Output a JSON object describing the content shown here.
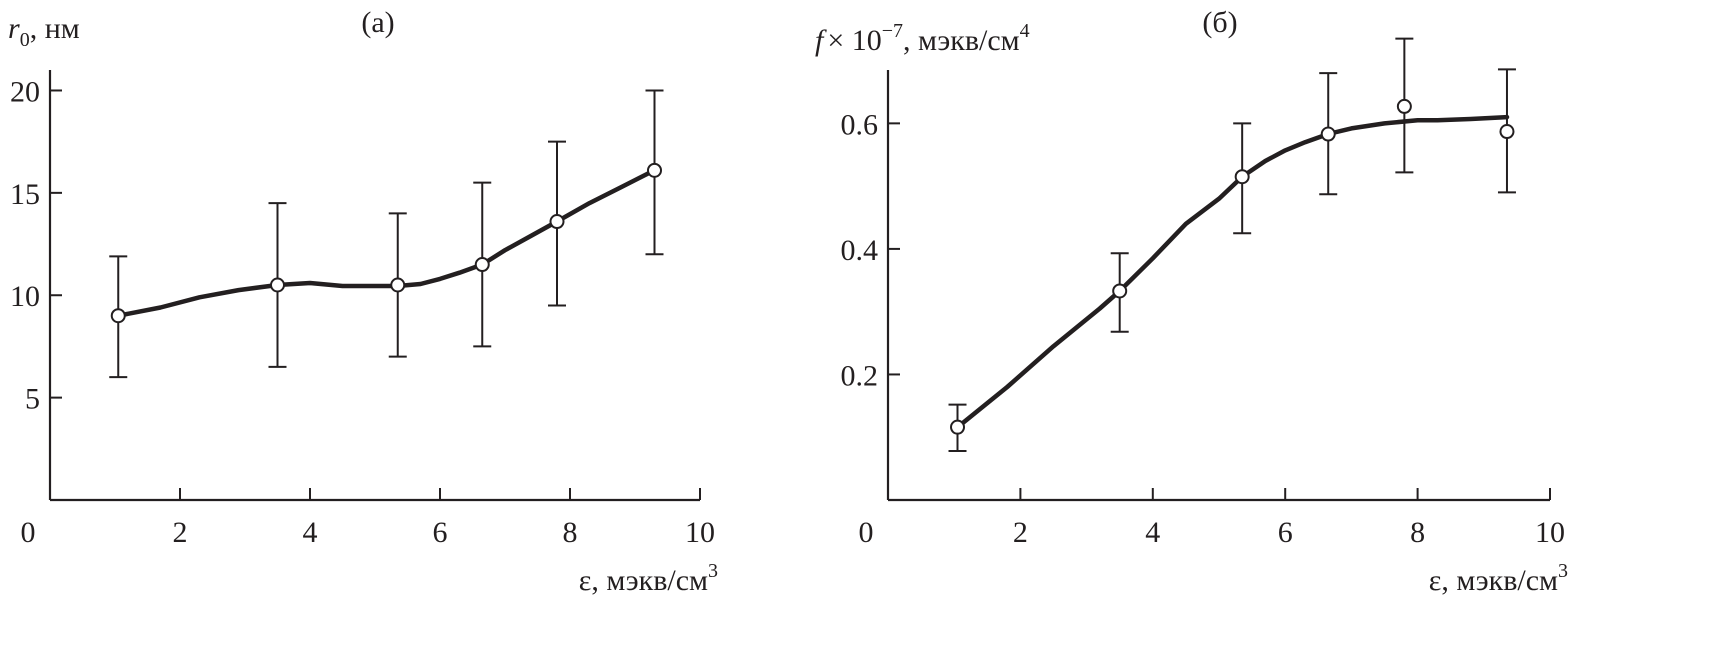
{
  "chart_data": [
    {
      "type": "line",
      "panel_label": "(а)",
      "ylabel_var": "r",
      "ylabel_sub": "0",
      "ylabel_rest": ", нм",
      "xlabel": "ε, мэкв/см",
      "xlabel_sup": "3",
      "xlim": [
        0,
        10
      ],
      "ylim": [
        0,
        21
      ],
      "xticks": [
        2,
        4,
        6,
        8,
        10
      ],
      "yticks": [
        5,
        10,
        15,
        20
      ],
      "origin_label": "0",
      "points": {
        "x": [
          1.05,
          3.5,
          5.35,
          6.65,
          7.8,
          9.3
        ],
        "y": [
          9.0,
          10.5,
          10.5,
          11.5,
          13.6,
          16.1
        ],
        "err_low": [
          6.0,
          6.5,
          7.0,
          7.5,
          9.5,
          12.0
        ],
        "err_high": [
          11.9,
          14.5,
          14.0,
          15.5,
          17.5,
          20.0
        ]
      },
      "curve": {
        "x": [
          1.05,
          1.7,
          2.3,
          2.9,
          3.5,
          4.0,
          4.5,
          5.0,
          5.35,
          5.7,
          6.0,
          6.3,
          6.65,
          7.0,
          7.4,
          7.8,
          8.3,
          8.8,
          9.3
        ],
        "y": [
          9.0,
          9.4,
          9.9,
          10.25,
          10.5,
          10.6,
          10.45,
          10.45,
          10.45,
          10.55,
          10.8,
          11.1,
          11.5,
          12.2,
          12.9,
          13.6,
          14.5,
          15.3,
          16.1
        ]
      }
    },
    {
      "type": "line",
      "panel_label": "(б)",
      "ylabel_var": "f",
      "ylabel_times": "× 10",
      "ylabel_exp": "−7",
      "ylabel_rest": ", мэкв/см",
      "ylabel_sup": "4",
      "xlabel": "ε, мэкв/см",
      "xlabel_sup": "3",
      "xlim": [
        0,
        10
      ],
      "ylim": [
        0,
        0.685
      ],
      "xticks": [
        2,
        4,
        6,
        8,
        10
      ],
      "yticks": [
        "0.2",
        "0.4",
        "0.6"
      ],
      "origin_label": "0",
      "points": {
        "x": [
          1.05,
          3.5,
          5.35,
          6.65,
          7.8,
          9.35
        ],
        "y": [
          0.116,
          0.333,
          0.515,
          0.583,
          0.627,
          0.587
        ],
        "err_low": [
          0.078,
          0.268,
          0.425,
          0.487,
          0.522,
          0.49
        ],
        "err_high": [
          0.152,
          0.393,
          0.6,
          0.68,
          0.735,
          0.686
        ]
      },
      "curve": {
        "x": [
          1.05,
          1.8,
          2.5,
          3.2,
          3.5,
          4.0,
          4.5,
          5.0,
          5.35,
          5.7,
          6.0,
          6.3,
          6.65,
          7.0,
          7.5,
          8.0,
          8.3,
          8.8,
          9.35
        ],
        "y": [
          0.116,
          0.18,
          0.245,
          0.305,
          0.333,
          0.385,
          0.44,
          0.48,
          0.515,
          0.54,
          0.557,
          0.57,
          0.583,
          0.592,
          0.6,
          0.605,
          0.605,
          0.607,
          0.61
        ]
      }
    }
  ]
}
